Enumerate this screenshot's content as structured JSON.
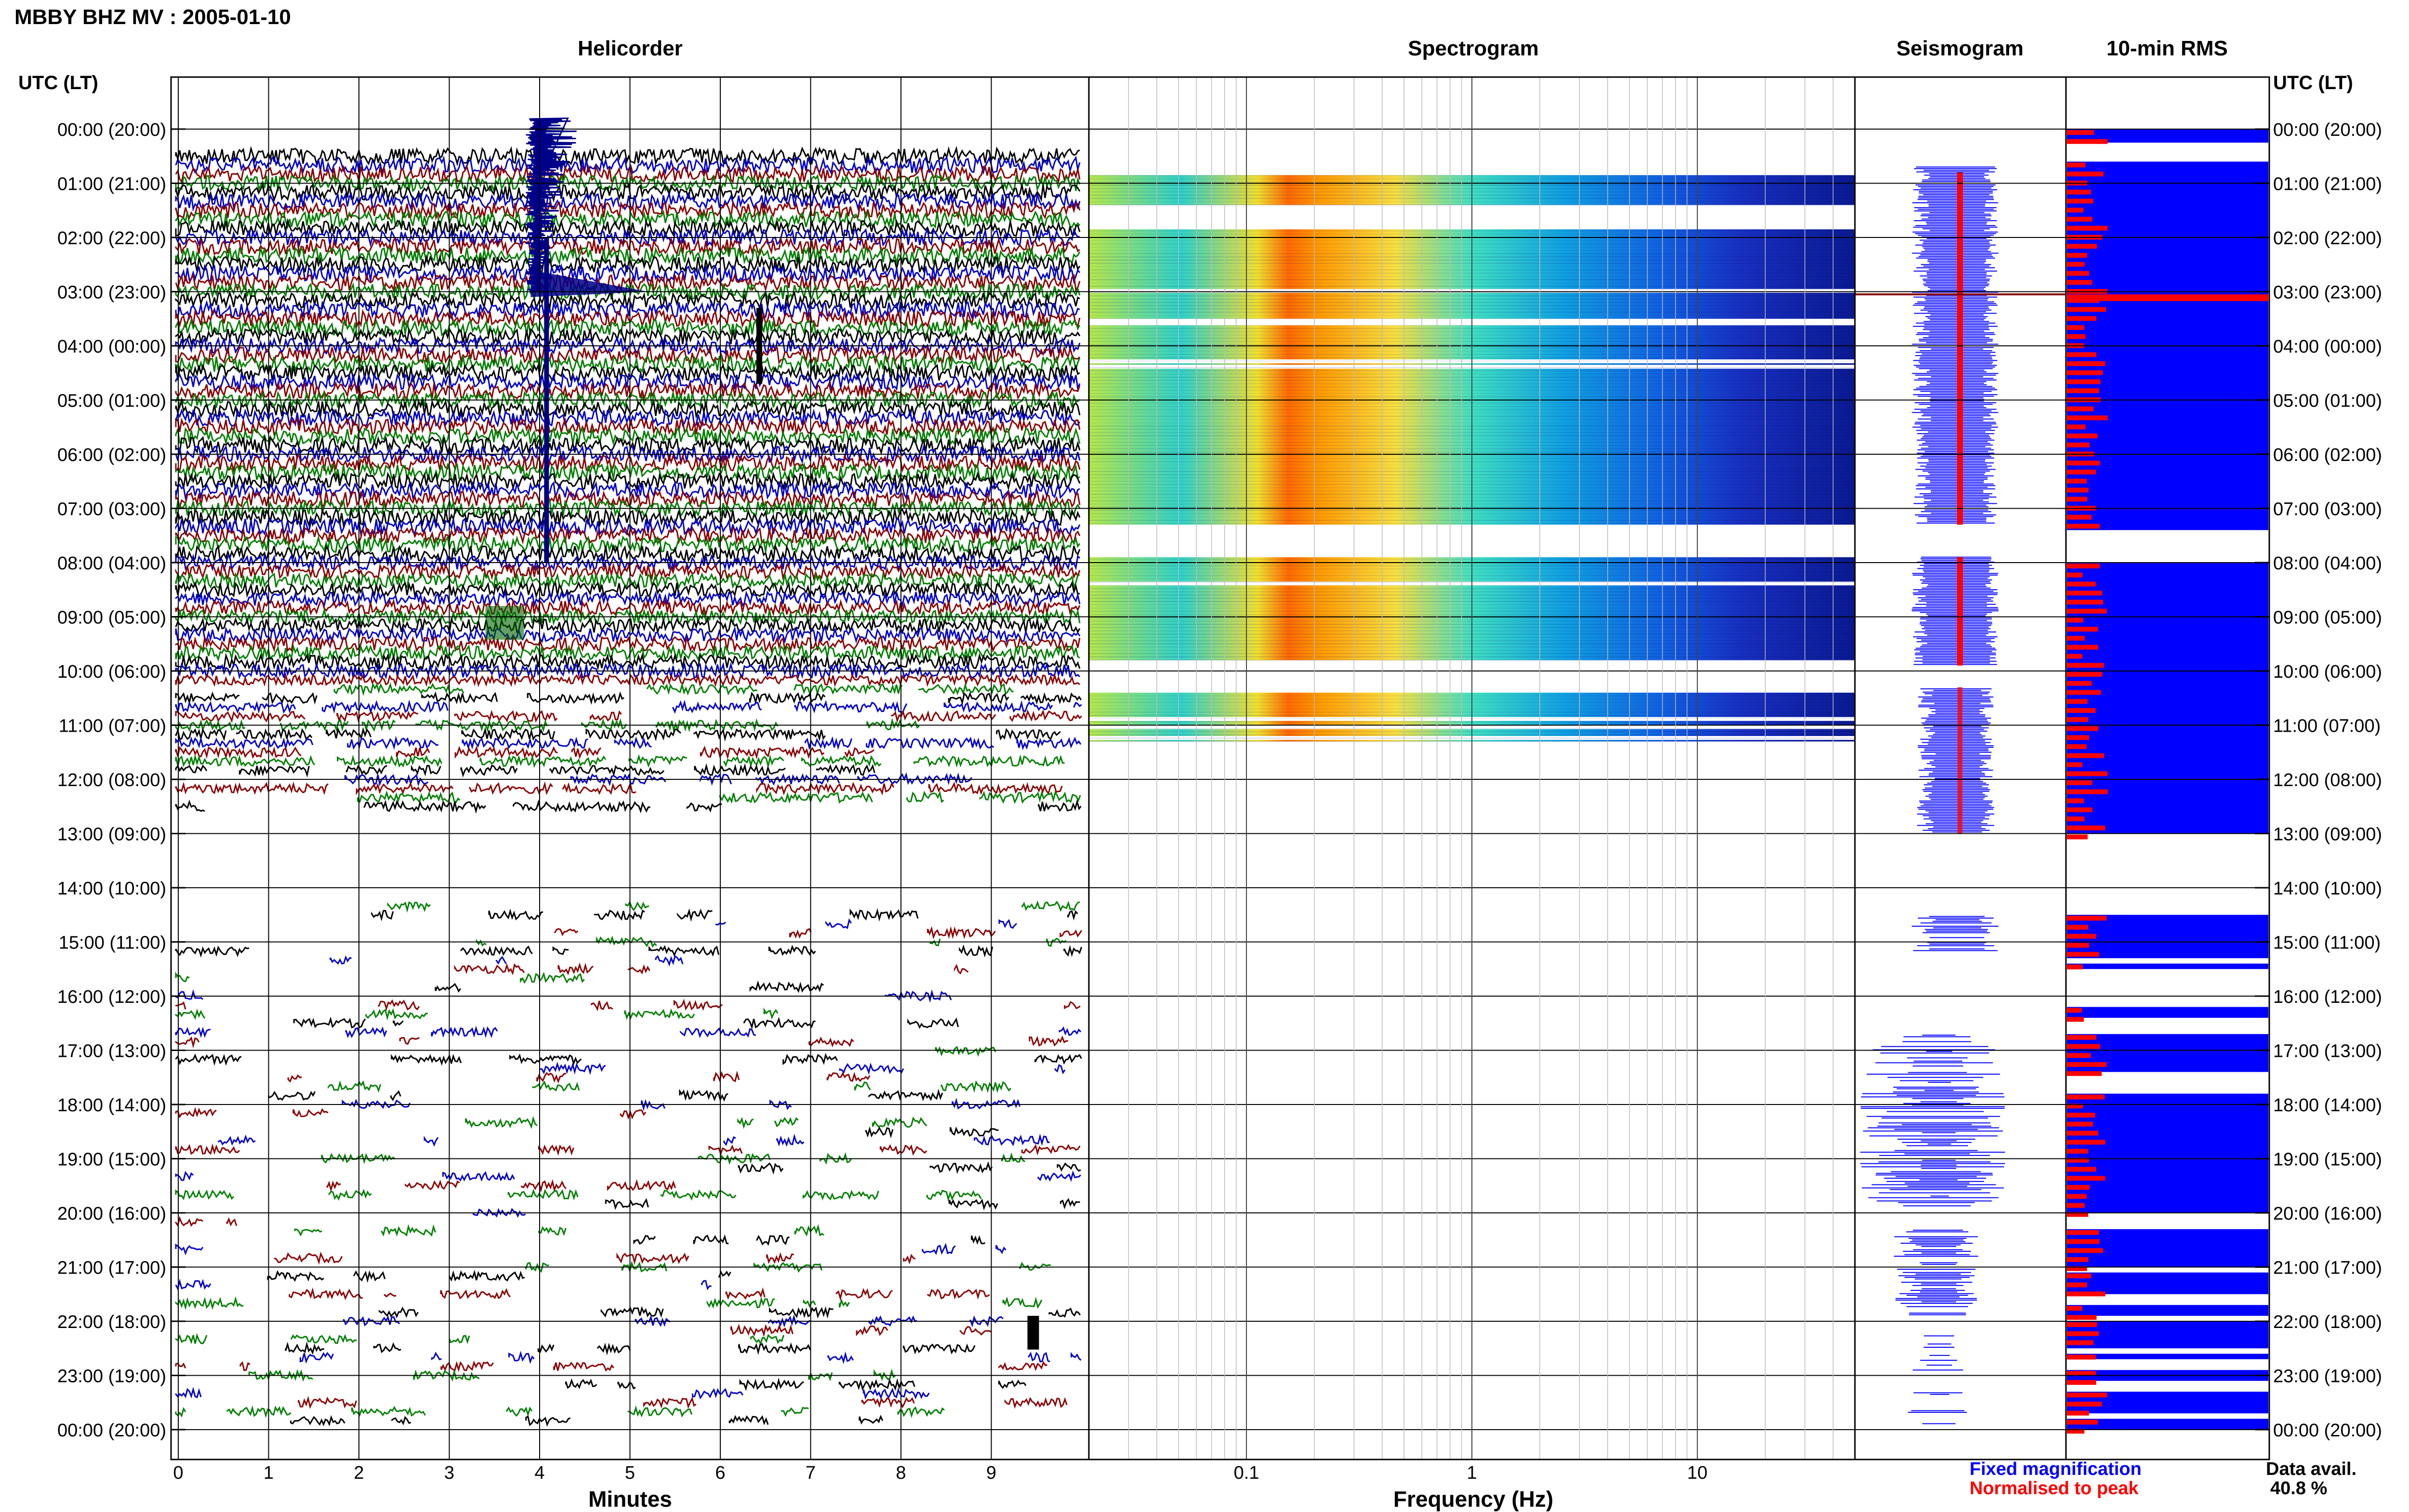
{
  "title": "MBBY BHZ MV : 2005-01-10",
  "panels": {
    "helicorder": "Helicorder",
    "spectrogram": "Spectrogram",
    "seismogram": "Seismogram",
    "rms": "10-min RMS"
  },
  "axis": {
    "time_header": "UTC (LT)",
    "time_labels": [
      "00:00 (20:00)",
      "01:00 (21:00)",
      "02:00 (22:00)",
      "03:00 (23:00)",
      "04:00 (00:00)",
      "05:00 (01:00)",
      "06:00 (02:00)",
      "07:00 (03:00)",
      "08:00 (04:00)",
      "09:00 (05:00)",
      "10:00 (06:00)",
      "11:00 (07:00)",
      "12:00 (08:00)",
      "13:00 (09:00)",
      "14:00 (10:00)",
      "15:00 (11:00)",
      "16:00 (12:00)",
      "17:00 (13:00)",
      "18:00 (14:00)",
      "19:00 (15:00)",
      "20:00 (16:00)",
      "21:00 (17:00)",
      "22:00 (18:00)",
      "23:00 (19:00)",
      "00:00 (20:00)"
    ],
    "minutes_label": "Minutes",
    "minutes_ticks": [
      "0",
      "1",
      "2",
      "3",
      "4",
      "5",
      "6",
      "7",
      "8",
      "9"
    ],
    "frequency_label": "Frequency (Hz)",
    "frequency_ticks": [
      "0.1",
      "1",
      "10"
    ]
  },
  "legend": {
    "fixed": "Fixed magnification",
    "normalised": "Normalised to peak",
    "data_avail_label": "Data avail.",
    "data_avail_value": "40.8 %"
  },
  "colors": {
    "trace_cycle": [
      "#000000",
      "#0000cc",
      "#8b0000",
      "#008000"
    ],
    "rms_blue": "#0000ff",
    "rms_red": "#ff0000",
    "legend_blue": "#0000ff",
    "legend_red": "#ff0000"
  },
  "chart_data": {
    "type": "heatmap",
    "station": "MBBY",
    "channel": "BHZ",
    "network": "MV",
    "date": "2005-01-10",
    "time_range_utc_hours": [
      0,
      24
    ],
    "helicorder_line_minutes": 10,
    "helicorder_xlim_minutes": [
      0,
      10
    ],
    "spectrogram_xlim_hz": [
      0.02,
      50
    ],
    "spectrogram_xscale": "log",
    "data_availability_percent": 40.8,
    "spectrogram_rows_with_data_hours": [
      [
        0.85,
        1.4
      ],
      [
        1.85,
        3.0
      ],
      [
        3.0,
        3.5
      ],
      [
        3.6,
        7.3
      ],
      [
        7.9,
        9.8
      ],
      [
        10.4,
        11.3
      ]
    ],
    "helicorder_rows_continuous_hours": [
      [
        0.5,
        12.5
      ]
    ],
    "helicorder_rows_sparse_hours": [
      [
        14.2,
        24
      ]
    ],
    "rms_series": [
      {
        "name": "Fixed magnification",
        "color": "blue",
        "segments_hours": [
          [
            0.0,
            0.25
          ],
          [
            0.6,
            7.4
          ],
          [
            8.0,
            13.0
          ],
          [
            14.5,
            15.3
          ],
          [
            15.4,
            15.5
          ],
          [
            16.2,
            16.4
          ],
          [
            16.7,
            17.4
          ],
          [
            17.8,
            20.0
          ],
          [
            20.3,
            21.0
          ],
          [
            21.1,
            21.5
          ],
          [
            21.7,
            21.9
          ],
          [
            22.0,
            22.5
          ],
          [
            22.6,
            22.7
          ],
          [
            22.9,
            23.1
          ],
          [
            23.3,
            23.7
          ],
          [
            23.8,
            24.0
          ]
        ]
      }
    ]
  }
}
